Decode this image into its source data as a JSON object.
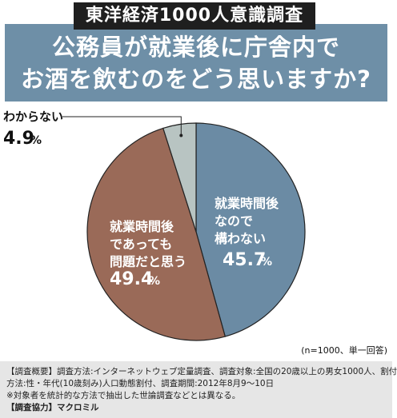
{
  "header": {
    "survey_tag": "東洋経済1000人意識調査",
    "title_line1": "公務員が就業後に庁舎内で",
    "title_line2": "お酒を飲むのをどう思いますか?"
  },
  "chart_data": {
    "type": "pie",
    "slices": [
      {
        "label_lines": [
          "就業時間後",
          "なので",
          "構わない"
        ],
        "value": 45.7,
        "value_text": "45.7",
        "unit": "%",
        "color": "#6b8ba4"
      },
      {
        "label_lines": [
          "就業時間後",
          "であっても",
          "問題だと思う"
        ],
        "value": 49.4,
        "value_text": "49.4",
        "unit": "%",
        "color": "#9a6a58"
      },
      {
        "label_lines": [
          "わからない"
        ],
        "value": 4.9,
        "value_text": "4.9",
        "unit": "%",
        "color": "#b8c4c2"
      }
    ],
    "note": "(n=1000、単一回答)"
  },
  "footer": {
    "line1": "【調査概要】調査方法:インターネットウェブ定量調査、調査対象:全国の20歳以上の男女1000人、割付",
    "line2": "方法:性・年代(10歳刻み)人口動態割付、調査期間:2012年8月9～10日",
    "line3": "※対象者を統計的な方法で抽出した世論調査などとは異なる。",
    "line4": "【調査協力】マクロミル"
  }
}
